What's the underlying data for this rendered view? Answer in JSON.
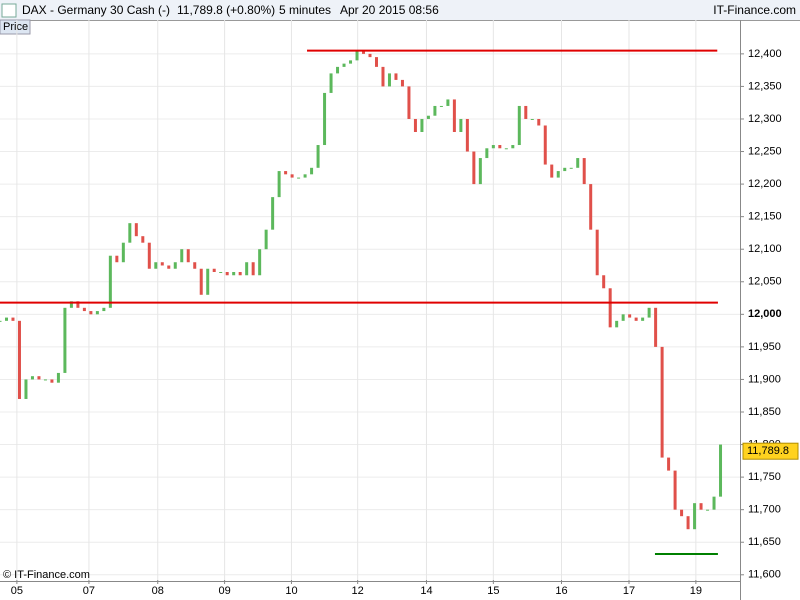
{
  "chart_data": {
    "type": "candlestick",
    "header": {
      "symbol": "DAX - Germany 30 Cash (-)",
      "quote": "11,789.8 (+0.80%)",
      "interval": "5 minutes",
      "datetime": "Apr 20 2015 08:56",
      "brand": "IT-Finance.com"
    },
    "panel_label": "Price",
    "copyright": "© IT-Finance.com",
    "up_color": "#5cb85c",
    "down_color": "#e0504a",
    "values": [
      11990,
      11995,
      11990,
      11870,
      11900,
      11905,
      11900,
      11900,
      11895,
      11910,
      12010,
      12020,
      12010,
      12005,
      12000,
      12005,
      12010,
      12090,
      12080,
      12110,
      12140,
      12120,
      12110,
      12070,
      12080,
      12075,
      12070,
      12080,
      12100,
      12080,
      12070,
      12030,
      12070,
      12065,
      12065,
      12060,
      12065,
      12060,
      12080,
      12060,
      12100,
      12130,
      12180,
      12220,
      12215,
      12210,
      12210,
      12215,
      12225,
      12260,
      12340,
      12370,
      12380,
      12385,
      12390,
      12405,
      12400,
      12395,
      12380,
      12350,
      12370,
      12360,
      12350,
      12300,
      12280,
      12300,
      12305,
      12320,
      12320,
      12330,
      12280,
      12300,
      12250,
      12200,
      12240,
      12255,
      12260,
      12255,
      12255,
      12260,
      12320,
      12300,
      12300,
      12290,
      12230,
      12210,
      12220,
      12225,
      12225,
      12240,
      12200,
      12130,
      12060,
      12040,
      11980,
      11990,
      12000,
      11995,
      11990,
      11995,
      12010,
      11950,
      11780,
      11760,
      11700,
      11690,
      11670,
      11710,
      11700,
      11700,
      11720,
      11800
    ],
    "xlim": [
      0,
      114
    ],
    "xticks": [
      {
        "value": 2.6,
        "label": "05"
      },
      {
        "value": 13.7,
        "label": "07"
      },
      {
        "value": 24.3,
        "label": "08"
      },
      {
        "value": 34.6,
        "label": "09"
      },
      {
        "value": 44.9,
        "label": "10"
      },
      {
        "value": 55.1,
        "label": "12"
      },
      {
        "value": 65.7,
        "label": "14"
      },
      {
        "value": 76,
        "label": "15"
      },
      {
        "value": 86.5,
        "label": "16"
      },
      {
        "value": 96.9,
        "label": "17"
      },
      {
        "value": 107.2,
        "label": "19"
      }
    ],
    "ylim": [
      11592,
      12452
    ],
    "yticks": [
      {
        "value": 11600,
        "label": "11,600"
      },
      {
        "value": 11650,
        "label": "11,650"
      },
      {
        "value": 11700,
        "label": "11,700"
      },
      {
        "value": 11750,
        "label": "11,750"
      },
      {
        "value": 11800,
        "label": "11,800"
      },
      {
        "value": 11850,
        "label": "11,850"
      },
      {
        "value": 11900,
        "label": "11,900"
      },
      {
        "value": 11950,
        "label": "11,950"
      },
      {
        "value": 12000,
        "label": "12,000"
      },
      {
        "value": 12050,
        "label": "12,050"
      },
      {
        "value": 12100,
        "label": "12,100"
      },
      {
        "value": 12150,
        "label": "12,150"
      },
      {
        "value": 12200,
        "label": "12,200"
      },
      {
        "value": 12250,
        "label": "12,250"
      },
      {
        "value": 12300,
        "label": "12,300"
      },
      {
        "value": 12350,
        "label": "12,350"
      },
      {
        "value": 12400,
        "label": "12,400"
      }
    ],
    "last_price": {
      "value": 11789.8,
      "label": "11,789.8"
    },
    "levels": [
      {
        "value": 12405,
        "from": 47.3,
        "to": 110.5,
        "color": "#e00000"
      },
      {
        "value": 12018,
        "from": 0,
        "to": 110.6,
        "color": "#e00000"
      },
      {
        "value": 11632,
        "from": 100.9,
        "to": 110.6,
        "color": "#008000"
      }
    ],
    "grid": true
  }
}
